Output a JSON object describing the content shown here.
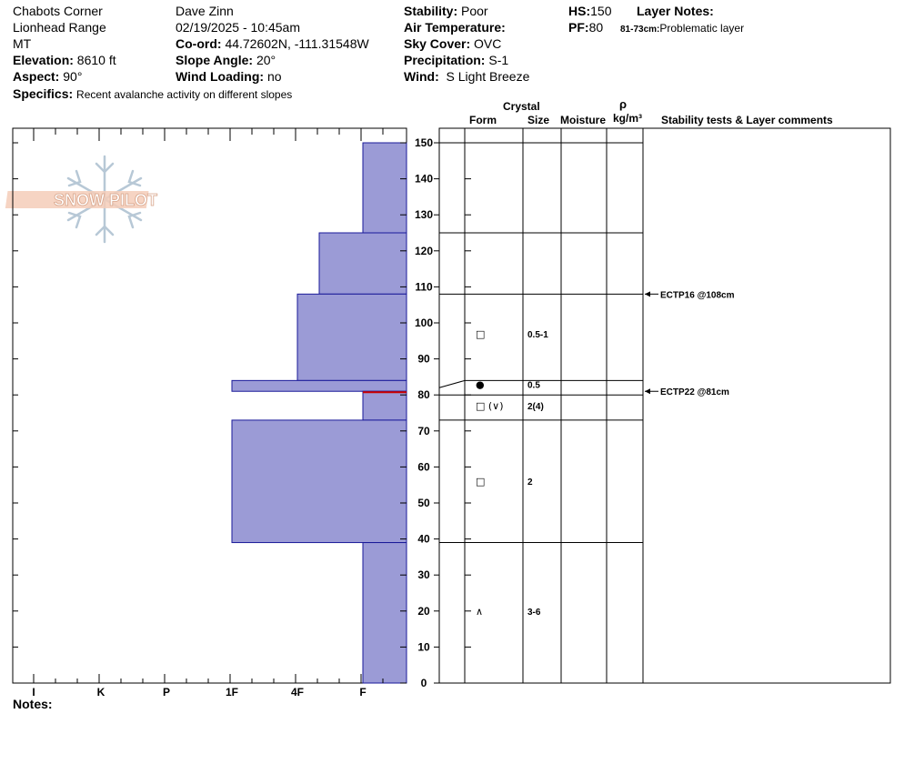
{
  "header": {
    "location": "Chabots Corner",
    "range": "Lionhead Range",
    "state": "MT",
    "elevation_label": "Elevation:",
    "elevation_value": "8610 ft",
    "aspect_label": "Aspect:",
    "aspect_value": "90°",
    "specifics_label": "Specifics:",
    "specifics_value": "Recent avalanche activity on different slopes",
    "observer": "Dave Zinn",
    "datetime": "02/19/2025 - 10:45am",
    "coord_label": "Co-ord:",
    "coord_value": "44.72602N, -111.31548W",
    "slope_label": "Slope Angle:",
    "slope_value": "20°",
    "wind_loading_label": "Wind Loading:",
    "wind_loading_value": "no",
    "stability_label": "Stability:",
    "stability_value": "Poor",
    "air_temp_label": "Air Temperature:",
    "air_temp_value": "",
    "sky_label": "Sky Cover:",
    "sky_value": "OVC",
    "precip_label": "Precipitation:",
    "precip_value": "S-1",
    "wind_label": "Wind:",
    "wind_value": "S Light Breeze",
    "hs_label": "HS:",
    "hs_value": "150",
    "pf_label": "PF:",
    "pf_value": "80",
    "layer_notes_label": "Layer Notes:",
    "layer_notes_range": "81-73cm:",
    "layer_notes_text": "Problematic layer"
  },
  "logo_text": "SNOW PILOT",
  "columns": {
    "crystal": "Crystal",
    "form": "Form",
    "size": "Size",
    "moisture": "Moisture",
    "rho": "ρ",
    "density_unit": "kg/m³",
    "comments": "Stability tests & Layer comments"
  },
  "hardness_axis": [
    "I",
    "K",
    "P",
    "1F",
    "4F",
    "F"
  ],
  "depth_ticks": [
    "0",
    "10",
    "20",
    "30",
    "40",
    "50",
    "60",
    "70",
    "80",
    "90",
    "100",
    "110",
    "120",
    "130",
    "140",
    "150"
  ],
  "notes_label": "Notes:",
  "colors": {
    "layer_fill": "#9b9bd6",
    "layer_stroke": "#1a1a99",
    "weak_line": "#cc0000"
  },
  "chart_data": {
    "type": "snow-profile",
    "depth_unit": "cm",
    "depth_range": [
      0,
      150
    ],
    "hardness_scale": [
      "F",
      "4F",
      "1F",
      "P",
      "K",
      "I"
    ],
    "layers": [
      {
        "top": 150,
        "bottom": 125,
        "hardness": "F"
      },
      {
        "top": 125,
        "bottom": 108,
        "hardness": "4F+"
      },
      {
        "top": 108,
        "bottom": 84,
        "hardness": "4F"
      },
      {
        "top": 84,
        "bottom": 81,
        "hardness": "1F"
      },
      {
        "top": 81,
        "bottom": 73,
        "hardness": "F"
      },
      {
        "top": 73,
        "bottom": 39,
        "hardness": "1F"
      },
      {
        "top": 39,
        "bottom": 0,
        "hardness": "F"
      }
    ],
    "crystal_layers": [
      {
        "label_depth": 97,
        "form": "□",
        "size": "0.5-1"
      },
      {
        "label_depth": 83,
        "form": "●",
        "size": "0.5"
      },
      {
        "label_depth": 77,
        "form": "□ (∨)",
        "size": "2(4)"
      },
      {
        "label_depth": 56,
        "form": "□",
        "size": "2"
      },
      {
        "label_depth": 20,
        "form": "∧",
        "size": "3-6"
      }
    ],
    "stability_tests": [
      {
        "depth": 108,
        "text": "ECTP16 @108cm"
      },
      {
        "depth": 81,
        "text": "ECTP22 @81cm"
      }
    ]
  }
}
